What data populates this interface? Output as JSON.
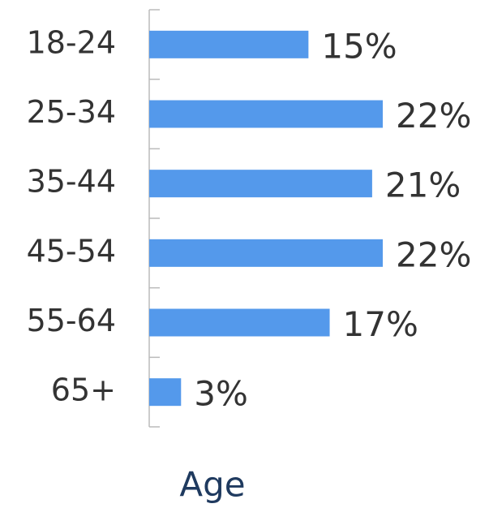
{
  "chart_data": {
    "type": "bar",
    "orientation": "horizontal",
    "x_label": "Age",
    "categories": [
      "18-24",
      "25-34",
      "35-44",
      "45-54",
      "55-64",
      "65+"
    ],
    "values": [
      15,
      22,
      21,
      22,
      17,
      3
    ],
    "value_labels": [
      "15%",
      "22%",
      "21%",
      "22%",
      "17%",
      "3%"
    ],
    "color": "#5499eb"
  }
}
